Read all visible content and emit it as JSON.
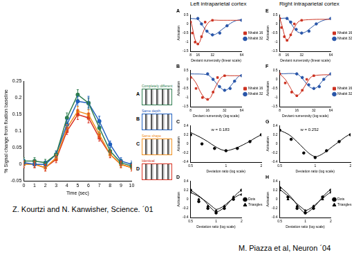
{
  "chart_data": [
    {
      "type": "line",
      "x_label": "Time (sec)",
      "y_label": "% Signal change from fixation baseline",
      "xlim": [
        0,
        10
      ],
      "xticks": [
        0,
        1,
        2,
        3,
        4,
        5,
        6,
        7,
        8,
        9,
        10
      ],
      "ylim": [
        -0.05,
        0.25
      ],
      "yticks": [
        -0.05,
        0,
        0.05,
        0.1,
        0.15,
        0.2,
        0.25
      ],
      "grid": false,
      "legend": "right",
      "x": [
        0,
        1,
        2,
        3,
        4,
        5,
        6,
        7,
        8,
        9,
        10
      ],
      "series": [
        {
          "letter": "A",
          "name": "Completely different",
          "color": "#2e7d4f",
          "marker": "circle",
          "values": [
            0.01,
            0.01,
            0.005,
            0.03,
            0.14,
            0.21,
            0.185,
            0.11,
            0.04,
            0.005,
            -0.005
          ],
          "errors": [
            0.01,
            0.01,
            0.01,
            0.01,
            0.015,
            0.015,
            0.015,
            0.015,
            0.01,
            0.01,
            0.01
          ]
        },
        {
          "letter": "B",
          "name": "Same depth",
          "color": "#1f5fbf",
          "marker": "circle",
          "values": [
            0.005,
            0,
            0,
            0.03,
            0.12,
            0.19,
            0.185,
            0.13,
            0.06,
            0.01,
            0
          ],
          "errors": [
            0.01,
            0.01,
            0.01,
            0.01,
            0.015,
            0.015,
            0.02,
            0.015,
            0.01,
            0.01,
            0.01
          ]
        },
        {
          "letter": "C",
          "name": "Same shape",
          "color": "#f0901e",
          "marker": "square",
          "values": [
            0,
            0,
            -0.01,
            0.02,
            0.11,
            0.16,
            0.15,
            0.09,
            0.03,
            0,
            -0.01
          ],
          "errors": [
            0.01,
            0.01,
            0.01,
            0.01,
            0.01,
            0.015,
            0.015,
            0.01,
            0.01,
            0.01,
            0.01
          ]
        },
        {
          "letter": "D",
          "name": "Identical",
          "color": "#d83020",
          "marker": "square",
          "values": [
            0,
            0,
            -0.01,
            0.015,
            0.1,
            0.15,
            0.14,
            0.08,
            0.03,
            0,
            -0.01
          ],
          "errors": [
            0.01,
            0.01,
            0.01,
            0.01,
            0.01,
            0.015,
            0.015,
            0.01,
            0.01,
            0.01,
            0.01
          ]
        }
      ]
    },
    {
      "type": "scatter",
      "title": "A",
      "x_label": "Deviant numerosity (linear scale)",
      "y_label": "Activation",
      "xlim": [
        8,
        64
      ],
      "xticks": [
        8,
        16,
        32,
        64
      ],
      "ylim": [
        -1.5,
        0.5
      ],
      "yticks": [
        -1.5,
        -1,
        -0.5,
        0,
        0.5
      ],
      "grid": false,
      "legend": "right",
      "series": [
        {
          "name": "Nhabit 16",
          "color": "#cc3322",
          "marker": "square",
          "x": [
            8,
            10,
            13,
            16,
            20,
            24,
            32
          ],
          "values": [
            0.1,
            -0.5,
            -1,
            -1.1,
            -0.7,
            0.1,
            0.2
          ],
          "fit_x": [
            8,
            10,
            12,
            14,
            16,
            18,
            20,
            24,
            28,
            32,
            40,
            48,
            64
          ],
          "fit_values": [
            0.2,
            -0.2,
            -0.7,
            -1,
            -1.1,
            -1,
            -0.7,
            -0.2,
            0.1,
            0.2,
            0.2,
            0.2,
            0.2
          ]
        },
        {
          "name": "Nhabit 32",
          "color": "#2855a8",
          "marker": "circle",
          "x": [
            16,
            20,
            26,
            32,
            40,
            48,
            64
          ],
          "values": [
            0.3,
            0,
            -0.4,
            -0.6,
            -0.5,
            -0.1,
            0.2
          ],
          "fit_x": [
            8,
            16,
            20,
            24,
            28,
            32,
            36,
            40,
            48,
            56,
            64
          ],
          "fit_values": [
            0.3,
            0.25,
            0,
            -0.3,
            -0.5,
            -0.6,
            -0.55,
            -0.4,
            -0.1,
            0.15,
            0.25
          ]
        }
      ]
    },
    {
      "type": "scatter",
      "title": "B",
      "x_label": "Deviant numerosity (log scale)",
      "y_label": "Activation",
      "log": "x",
      "xlim": [
        8,
        64
      ],
      "xticks": [
        8,
        16,
        32,
        64
      ],
      "ylim": [
        -1.5,
        0.5
      ],
      "yticks": [
        -1.5,
        -1,
        -0.5,
        0,
        0.5
      ],
      "grid": false,
      "legend": "right",
      "series": [
        {
          "name": "Nhabit 16",
          "color": "#cc3322",
          "marker": "square",
          "x": [
            8,
            10,
            13,
            16,
            20,
            24,
            32
          ],
          "values": [
            0.1,
            -0.5,
            -1,
            -1.1,
            -0.7,
            0.1,
            0.2
          ],
          "fit_x": [
            8,
            10,
            12,
            14,
            16,
            18,
            20,
            24,
            28,
            32,
            40,
            48,
            64
          ],
          "fit_values": [
            0.2,
            -0.2,
            -0.7,
            -1,
            -1.1,
            -1,
            -0.7,
            -0.2,
            0.1,
            0.2,
            0.2,
            0.2,
            0.2
          ]
        },
        {
          "name": "Nhabit 32",
          "color": "#2855a8",
          "marker": "circle",
          "x": [
            16,
            20,
            26,
            32,
            40,
            48,
            64
          ],
          "values": [
            0.3,
            0,
            -0.4,
            -0.6,
            -0.5,
            -0.1,
            0.2
          ],
          "fit_x": [
            8,
            16,
            20,
            24,
            28,
            32,
            36,
            40,
            48,
            56,
            64
          ],
          "fit_values": [
            0.3,
            0.25,
            0,
            -0.3,
            -0.5,
            -0.6,
            -0.55,
            -0.4,
            -0.1,
            0.15,
            0.25
          ]
        }
      ]
    },
    {
      "type": "scatter",
      "title": "C",
      "x_label": "Deviation ratio (log scale)",
      "y_label": "Activation",
      "log": "x",
      "xlim": [
        0.5,
        2
      ],
      "xticks": [
        0.5,
        1,
        2
      ],
      "ylim": [
        -0.4,
        0.4
      ],
      "yticks": [
        -0.4,
        -0.2,
        0,
        0.2,
        0.4
      ],
      "grid": false,
      "annotation": "w = 0.183",
      "series": [
        {
          "color": "#000000",
          "marker": "circle",
          "x": [
            0.5,
            0.625,
            0.8,
            1,
            1.25,
            1.6,
            2
          ],
          "values": [
            0.2,
            0,
            -0.1,
            -0.15,
            -0.1,
            0.05,
            0.2
          ],
          "fit_x": [
            0.5,
            0.6,
            0.7,
            0.8,
            0.9,
            1,
            1.1,
            1.25,
            1.4,
            1.6,
            1.8,
            2
          ],
          "fit_values": [
            0.25,
            0.15,
            0.05,
            -0.05,
            -0.12,
            -0.15,
            -0.13,
            -0.08,
            -0.02,
            0.06,
            0.14,
            0.2
          ]
        }
      ]
    },
    {
      "type": "scatter",
      "title": "D",
      "x_label": "Deviation ratio (log scale)",
      "y_label": "Activation",
      "log": "x",
      "xlim": [
        0.5,
        2
      ],
      "xticks": [
        0.5,
        1,
        2
      ],
      "ylim": [
        -0.4,
        0.4
      ],
      "yticks": [
        -0.4,
        -0.2,
        0,
        0.2,
        0.4
      ],
      "grid": false,
      "legend": "right",
      "series": [
        {
          "name": "Dots",
          "color": "#000000",
          "marker": "circle",
          "x": [
            0.5,
            0.625,
            0.8,
            1,
            1.25,
            1.6,
            2
          ],
          "values": [
            0.2,
            -0.05,
            -0.2,
            -0.3,
            -0.2,
            0,
            0.2
          ],
          "fit_x": [
            0.5,
            0.6,
            0.7,
            0.8,
            0.9,
            1,
            1.1,
            1.25,
            1.4,
            1.6,
            1.8,
            2
          ],
          "fit_values": [
            0.2,
            0.1,
            0,
            -0.12,
            -0.22,
            -0.28,
            -0.25,
            -0.18,
            -0.08,
            0.04,
            0.14,
            0.2
          ]
        },
        {
          "name": "Triangles",
          "color": "#000000",
          "marker": "triangle",
          "x": [
            0.5,
            0.625,
            0.8,
            1,
            1.25,
            1.6,
            2
          ],
          "values": [
            0.15,
            0,
            -0.15,
            -0.25,
            -0.15,
            0.05,
            0.1
          ],
          "fit_x": [
            0.5,
            0.6,
            0.7,
            0.8,
            0.9,
            1,
            1.1,
            1.25,
            1.4,
            1.6,
            1.8,
            2
          ],
          "fit_values": [
            0.15,
            0.08,
            0,
            -0.08,
            -0.16,
            -0.22,
            -0.2,
            -0.14,
            -0.06,
            0.02,
            0.08,
            0.12
          ]
        }
      ]
    },
    {
      "type": "scatter",
      "title": "E",
      "x_label": "Deviant numerosity (linear scale)",
      "y_label": "Activation",
      "xlim": [
        8,
        64
      ],
      "xticks": [
        8,
        16,
        32,
        64
      ],
      "ylim": [
        -1.5,
        0.5
      ],
      "yticks": [
        -1.5,
        -1,
        -0.5,
        0,
        0.5
      ],
      "grid": false,
      "legend": "right",
      "series": [
        {
          "name": "Nhabit 16",
          "color": "#cc3322",
          "marker": "square",
          "x": [
            8,
            10,
            13,
            16,
            20,
            24,
            32
          ],
          "values": [
            0.3,
            -0.2,
            -0.7,
            -0.9,
            -0.6,
            0,
            0.2
          ],
          "fit_x": [
            8,
            10,
            12,
            14,
            16,
            18,
            20,
            24,
            28,
            32,
            48,
            64
          ],
          "fit_values": [
            0.3,
            0,
            -0.4,
            -0.75,
            -0.9,
            -0.8,
            -0.6,
            -0.2,
            0.1,
            0.2,
            0.25,
            0.25
          ]
        },
        {
          "name": "Nhabit 32",
          "color": "#2855a8",
          "marker": "circle",
          "x": [
            16,
            20,
            26,
            32,
            40,
            48,
            64
          ],
          "values": [
            0.3,
            0.1,
            -0.3,
            -0.5,
            -0.4,
            0,
            0.3
          ],
          "fit_x": [
            8,
            16,
            20,
            24,
            28,
            32,
            36,
            40,
            48,
            56,
            64
          ],
          "fit_values": [
            0.3,
            0.3,
            0.05,
            -0.25,
            -0.45,
            -0.5,
            -0.45,
            -0.3,
            0,
            0.2,
            0.3
          ]
        }
      ]
    },
    {
      "type": "scatter",
      "title": "F",
      "x_label": "Deviant numerosity (log scale)",
      "y_label": "Activation",
      "log": "x",
      "xlim": [
        8,
        64
      ],
      "xticks": [
        8,
        16,
        32,
        64
      ],
      "ylim": [
        -1.5,
        0.5
      ],
      "yticks": [
        -1.5,
        -1,
        -0.5,
        0,
        0.5
      ],
      "grid": false,
      "legend": "right",
      "series": [
        {
          "name": "Nhabit 16",
          "color": "#cc3322",
          "marker": "square",
          "x": [
            8,
            10,
            13,
            16,
            20,
            24,
            32
          ],
          "values": [
            0.3,
            -0.2,
            -0.7,
            -0.9,
            -0.6,
            0,
            0.2
          ],
          "fit_x": [
            8,
            10,
            12,
            14,
            16,
            18,
            20,
            24,
            28,
            32,
            48,
            64
          ],
          "fit_values": [
            0.3,
            0,
            -0.4,
            -0.75,
            -0.9,
            -0.8,
            -0.6,
            -0.2,
            0.1,
            0.2,
            0.25,
            0.25
          ]
        },
        {
          "name": "Nhabit 32",
          "color": "#2855a8",
          "marker": "circle",
          "x": [
            16,
            20,
            26,
            32,
            40,
            48,
            64
          ],
          "values": [
            0.3,
            0.1,
            -0.3,
            -0.5,
            -0.4,
            0,
            0.3
          ],
          "fit_x": [
            8,
            16,
            20,
            24,
            28,
            32,
            36,
            40,
            48,
            56,
            64
          ],
          "fit_values": [
            0.3,
            0.3,
            0.05,
            -0.25,
            -0.45,
            -0.5,
            -0.45,
            -0.3,
            0,
            0.2,
            0.3
          ]
        }
      ]
    },
    {
      "type": "scatter",
      "title": "G",
      "x_label": "Deviation ratio (log scale)",
      "y_label": "Activation",
      "log": "x",
      "xlim": [
        0.5,
        2
      ],
      "xticks": [
        0.5,
        1,
        2
      ],
      "ylim": [
        -0.4,
        0.4
      ],
      "yticks": [
        -0.4,
        -0.2,
        0,
        0.2,
        0.4
      ],
      "grid": false,
      "annotation": "w = 0.252",
      "series": [
        {
          "color": "#000000",
          "marker": "circle",
          "x": [
            0.5,
            0.625,
            0.8,
            1,
            1.25,
            1.6,
            2
          ],
          "values": [
            0.3,
            0.1,
            -0.2,
            -0.3,
            -0.15,
            0.05,
            0.2
          ],
          "fit_x": [
            0.5,
            0.6,
            0.7,
            0.8,
            0.9,
            1,
            1.1,
            1.25,
            1.4,
            1.6,
            1.8,
            2
          ],
          "fit_values": [
            0.3,
            0.2,
            0.05,
            -0.1,
            -0.22,
            -0.28,
            -0.25,
            -0.16,
            -0.06,
            0.05,
            0.15,
            0.22
          ]
        }
      ]
    },
    {
      "type": "scatter",
      "title": "H",
      "x_label": "Deviation ratio (log scale)",
      "y_label": "Activation",
      "log": "x",
      "xlim": [
        0.5,
        2
      ],
      "xticks": [
        0.5,
        1,
        2
      ],
      "ylim": [
        -0.4,
        0.4
      ],
      "yticks": [
        -0.4,
        -0.2,
        0,
        0.2,
        0.4
      ],
      "grid": false,
      "legend": "right",
      "series": [
        {
          "name": "Dots",
          "color": "#000000",
          "marker": "circle",
          "x": [
            0.5,
            0.625,
            0.8,
            1,
            1.25,
            1.6,
            2
          ],
          "values": [
            0.25,
            0.05,
            -0.2,
            -0.3,
            -0.2,
            0.05,
            0.2
          ],
          "fit_x": [
            0.5,
            0.6,
            0.7,
            0.8,
            0.9,
            1,
            1.1,
            1.25,
            1.4,
            1.6,
            1.8,
            2
          ],
          "fit_values": [
            0.28,
            0.15,
            0.02,
            -0.12,
            -0.24,
            -0.3,
            -0.27,
            -0.18,
            -0.08,
            0.05,
            0.15,
            0.22
          ]
        },
        {
          "name": "Triangles",
          "color": "#000000",
          "marker": "triangle",
          "x": [
            0.5,
            0.625,
            0.8,
            1,
            1.25,
            1.6,
            2
          ],
          "values": [
            0.2,
            0,
            -0.15,
            -0.25,
            -0.15,
            0,
            0.15
          ],
          "fit_x": [
            0.5,
            0.6,
            0.7,
            0.8,
            0.9,
            1,
            1.1,
            1.25,
            1.4,
            1.6,
            1.8,
            2
          ],
          "fit_values": [
            0.22,
            0.1,
            0,
            -0.1,
            -0.18,
            -0.24,
            -0.22,
            -0.15,
            -0.07,
            0.02,
            0.1,
            0.16
          ]
        }
      ]
    }
  ],
  "column_headers": [
    "Left intraparietal cortex",
    "Right intraparietal cortex"
  ],
  "captions": [
    "Z. Kourtzi and N. Kanwisher, Science. ´01",
    "M. Piazza et al, Neuron ´04"
  ]
}
